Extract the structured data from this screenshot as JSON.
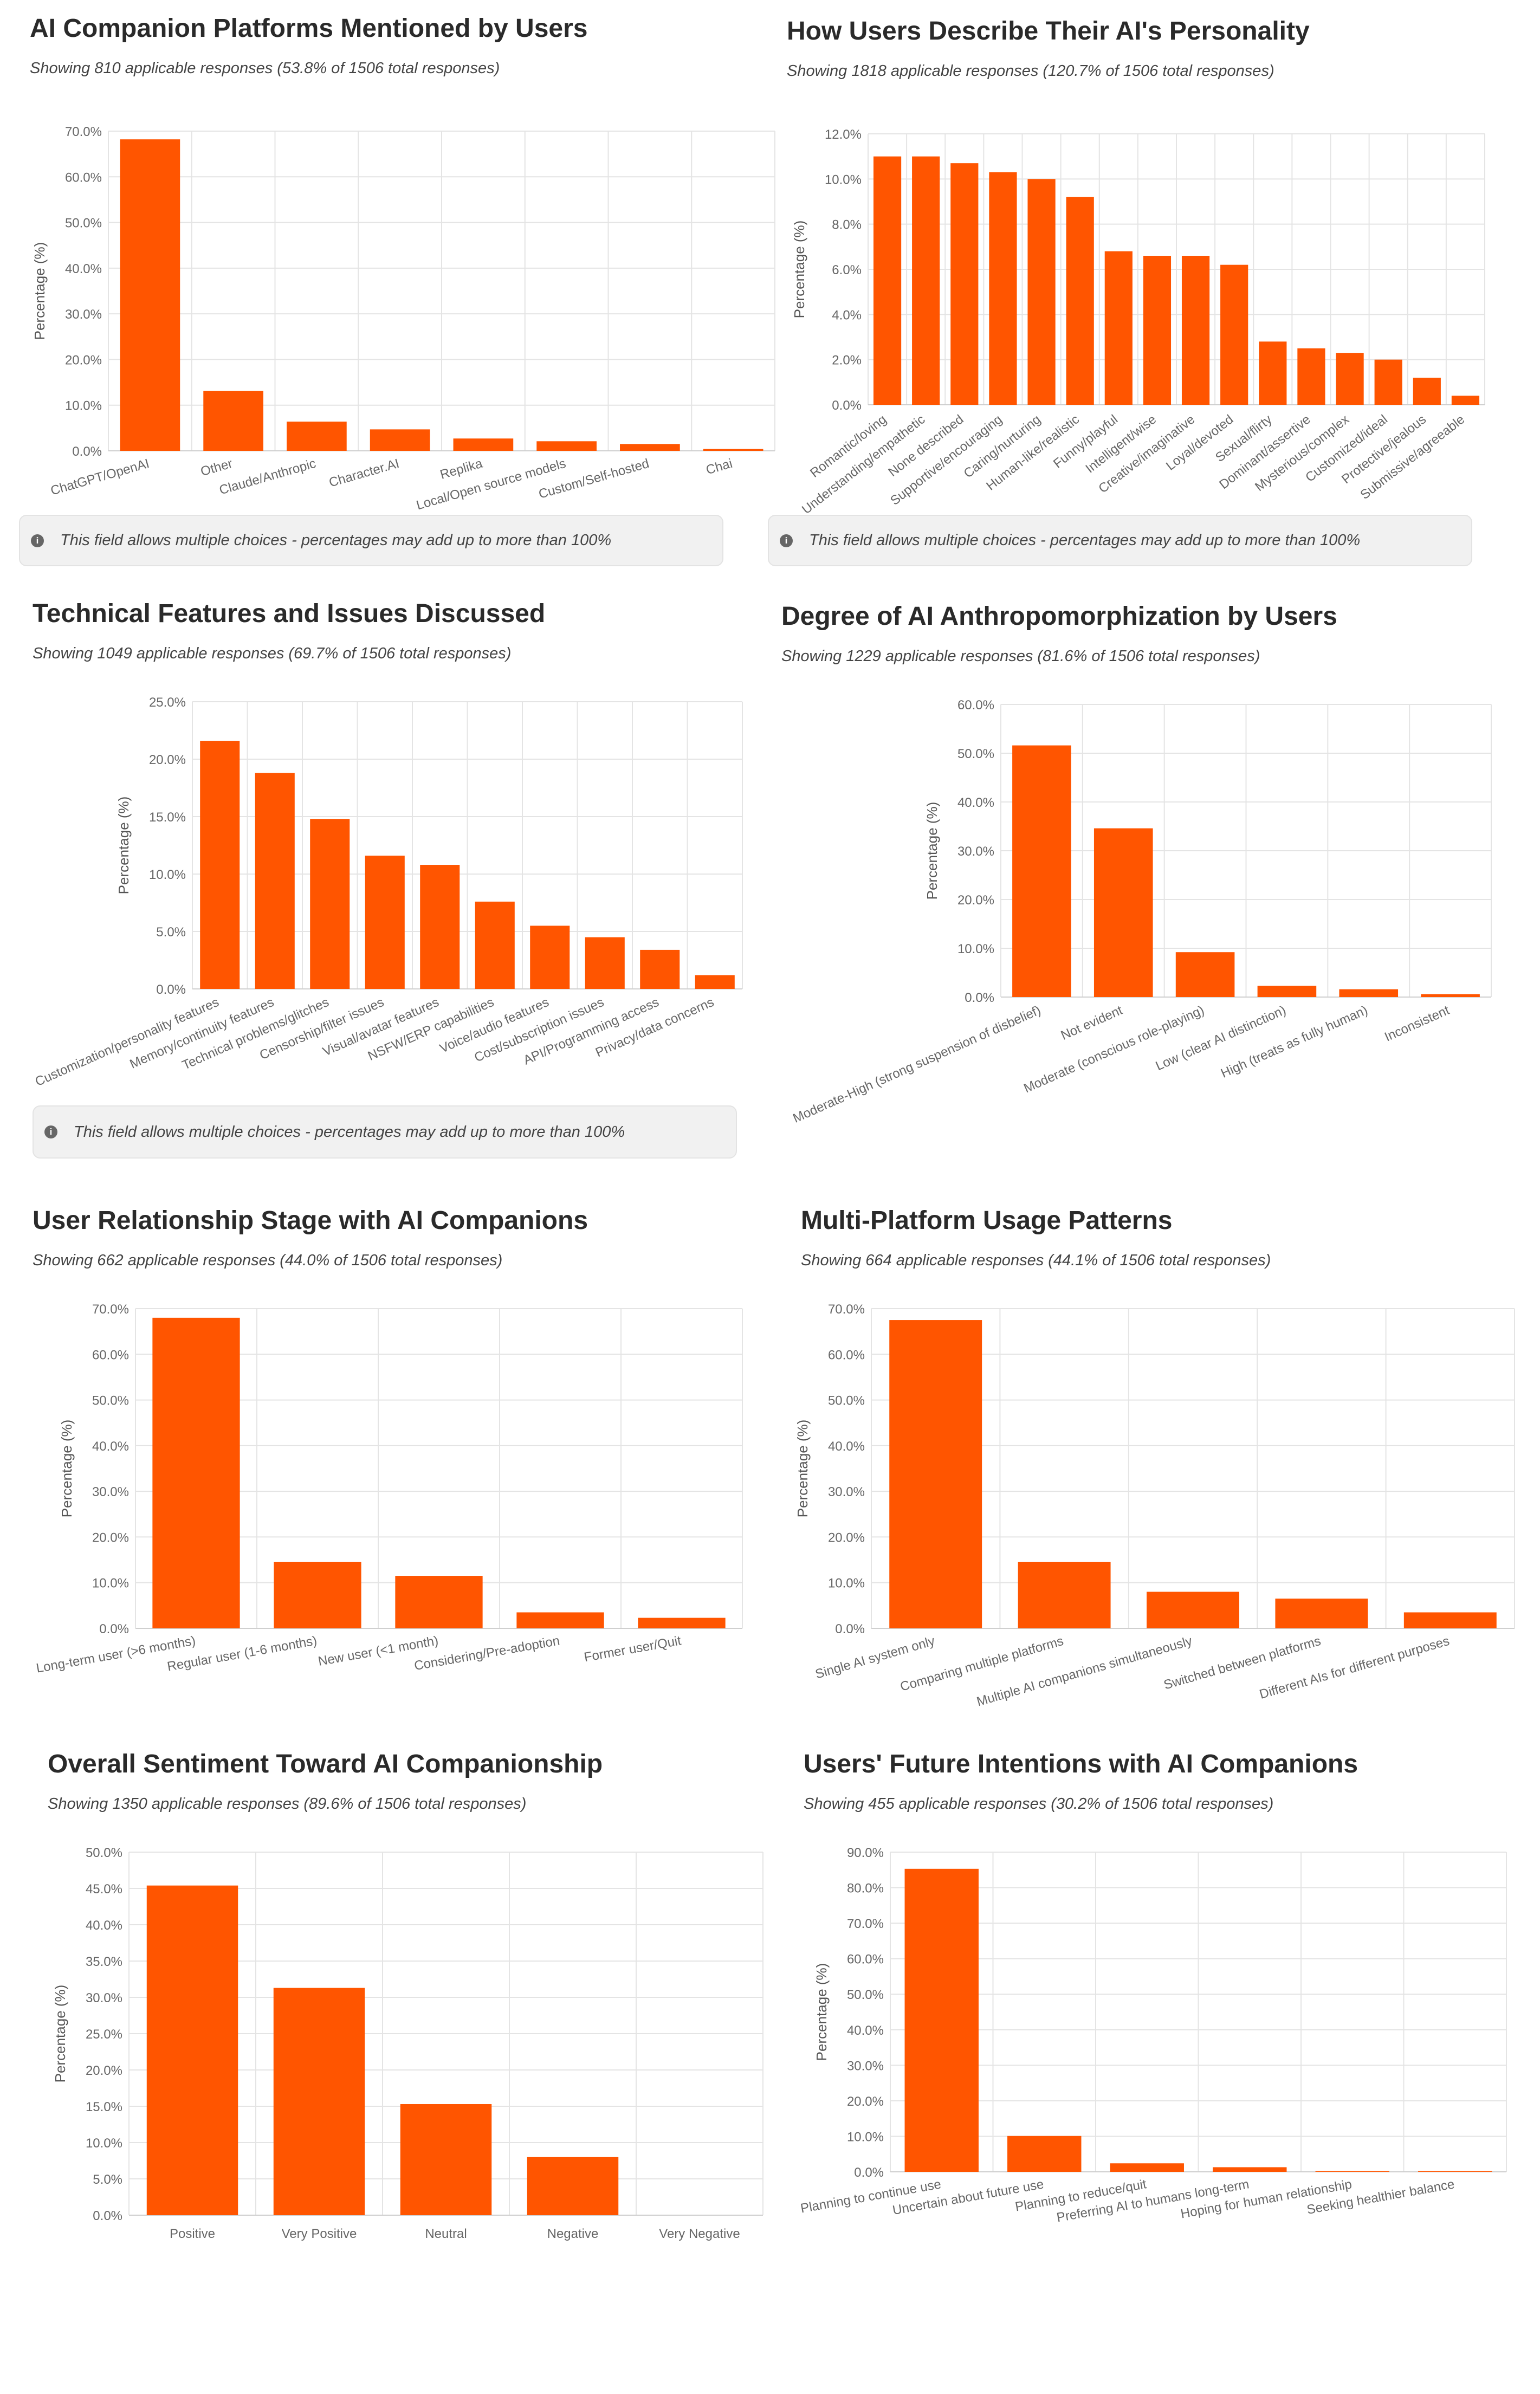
{
  "colors": {
    "bar": "#ff5500",
    "grid": "#e4e4e4",
    "axis_text": "#666666"
  },
  "note_text": "This field allows multiple choices - percentages may add up to more than 100%",
  "info_icon": "info-icon",
  "chart_data": [
    {
      "type": "bar",
      "title": "AI Companion Platforms Mentioned by Users",
      "subtitle": "Showing 810 applicable responses (53.8% of 1506 total responses)",
      "ylabel": "Percentage (%)",
      "ylim": [
        0,
        70
      ],
      "yticks": [
        "0.0%",
        "10.0%",
        "20.0%",
        "30.0%",
        "40.0%",
        "50.0%",
        "60.0%",
        "70.0%"
      ],
      "categories": [
        "ChatGPT/OpenAI",
        "Other",
        "Claude/Anthropic",
        "Character.AI",
        "Replika",
        "Local/Open source models",
        "Custom/Self-hosted",
        "Chai"
      ],
      "values": [
        68.2,
        13.1,
        6.4,
        4.7,
        2.7,
        2.1,
        1.5,
        0.4
      ],
      "multiple_choice": true
    },
    {
      "type": "bar",
      "title": "How Users Describe Their AI's Personality",
      "subtitle": "Showing 1818 applicable responses (120.7% of 1506 total responses)",
      "ylabel": "Percentage (%)",
      "ylim": [
        0,
        12
      ],
      "yticks": [
        "0.0%",
        "2.0%",
        "4.0%",
        "6.0%",
        "8.0%",
        "10.0%",
        "12.0%"
      ],
      "categories": [
        "Romantic/loving",
        "Understanding/empathetic",
        "None described",
        "Supportive/encouraging",
        "Caring/nurturing",
        "Human-like/realistic",
        "Funny/playful",
        "Intelligent/wise",
        "Creative/imaginative",
        "Loyal/devoted",
        "Sexual/flirty",
        "Dominant/assertive",
        "Mysterious/complex",
        "Customized/ideal",
        "Protective/jealous",
        "Submissive/agreeable"
      ],
      "values": [
        11.0,
        11.0,
        10.7,
        10.3,
        10.0,
        9.2,
        6.8,
        6.6,
        6.6,
        6.2,
        2.8,
        2.5,
        2.3,
        2.0,
        1.2,
        0.4
      ],
      "multiple_choice": true
    },
    {
      "type": "bar",
      "title": "Technical Features and Issues Discussed",
      "subtitle": "Showing 1049 applicable responses (69.7% of 1506 total responses)",
      "ylabel": "Percentage (%)",
      "ylim": [
        0,
        25
      ],
      "yticks": [
        "0.0%",
        "5.0%",
        "10.0%",
        "15.0%",
        "20.0%",
        "25.0%"
      ],
      "categories": [
        "Customization/personality features",
        "Memory/continuity features",
        "Technical problems/glitches",
        "Censorship/filter issues",
        "Visual/avatar features",
        "NSFW/ERP capabilities",
        "Voice/audio features",
        "Cost/subscription issues",
        "API/Programming access",
        "Privacy/data concerns"
      ],
      "values": [
        21.6,
        18.8,
        14.8,
        11.6,
        10.8,
        7.6,
        5.5,
        4.5,
        3.4,
        1.2
      ],
      "multiple_choice": true
    },
    {
      "type": "bar",
      "title": "Degree of AI Anthropomorphization by Users",
      "subtitle": "Showing 1229 applicable responses (81.6% of 1506 total responses)",
      "ylabel": "Percentage (%)",
      "ylim": [
        0,
        60
      ],
      "yticks": [
        "0.0%",
        "10.0%",
        "20.0%",
        "30.0%",
        "40.0%",
        "50.0%",
        "60.0%"
      ],
      "categories": [
        "Moderate-High (strong suspension of disbelief)",
        "Not evident",
        "Moderate (conscious role-playing)",
        "Low (clear AI distinction)",
        "High (treats as fully human)",
        "Inconsistent"
      ],
      "values": [
        51.6,
        34.6,
        9.2,
        2.3,
        1.6,
        0.6
      ],
      "multiple_choice": false
    },
    {
      "type": "bar",
      "title": "User Relationship Stage with AI Companions",
      "subtitle": "Showing 662 applicable responses (44.0% of 1506 total responses)",
      "ylabel": "Percentage (%)",
      "ylim": [
        0,
        70
      ],
      "yticks": [
        "0.0%",
        "10.0%",
        "20.0%",
        "30.0%",
        "40.0%",
        "50.0%",
        "60.0%",
        "70.0%"
      ],
      "categories": [
        "Long-term user (>6 months)",
        "Regular user (1-6 months)",
        "New user (<1 month)",
        "Considering/Pre-adoption",
        "Former user/Quit"
      ],
      "values": [
        68.0,
        14.5,
        11.5,
        3.5,
        2.3
      ],
      "multiple_choice": false
    },
    {
      "type": "bar",
      "title": "Multi-Platform Usage Patterns",
      "subtitle": "Showing 664 applicable responses (44.1% of 1506 total responses)",
      "ylabel": "Percentage (%)",
      "ylim": [
        0,
        70
      ],
      "yticks": [
        "0.0%",
        "10.0%",
        "20.0%",
        "30.0%",
        "40.0%",
        "50.0%",
        "60.0%",
        "70.0%"
      ],
      "categories": [
        "Single AI system only",
        "Comparing multiple platforms",
        "Multiple AI companions simultaneously",
        "Switched between platforms",
        "Different AIs for different purposes"
      ],
      "values": [
        67.5,
        14.5,
        8.0,
        6.5,
        3.5
      ],
      "multiple_choice": false
    },
    {
      "type": "bar",
      "title": "Overall Sentiment Toward AI Companionship",
      "subtitle": "Showing 1350 applicable responses (89.6% of 1506 total responses)",
      "ylabel": "Percentage (%)",
      "ylim": [
        0,
        50
      ],
      "yticks": [
        "0.0%",
        "5.0%",
        "10.0%",
        "15.0%",
        "20.0%",
        "25.0%",
        "30.0%",
        "35.0%",
        "40.0%",
        "45.0%",
        "50.0%"
      ],
      "categories": [
        "Positive",
        "Very Positive",
        "Neutral",
        "Negative",
        "Very Negative"
      ],
      "values": [
        45.4,
        31.3,
        15.3,
        8.0,
        0.0
      ],
      "multiple_choice": false
    },
    {
      "type": "bar",
      "title": "Users' Future Intentions with AI Companions",
      "subtitle": "Showing 455 applicable responses (30.2% of 1506 total responses)",
      "ylabel": "Percentage (%)",
      "ylim": [
        0,
        90
      ],
      "yticks": [
        "0.0%",
        "10.0%",
        "20.0%",
        "30.0%",
        "40.0%",
        "50.0%",
        "60.0%",
        "70.0%",
        "80.0%",
        "90.0%"
      ],
      "categories": [
        "Planning to continue use",
        "Uncertain about future use",
        "Planning to reduce/quit",
        "Preferring AI to humans long-term",
        "Hoping for human relationship",
        "Seeking healthier balance"
      ],
      "values": [
        85.3,
        10.1,
        2.4,
        1.3,
        0.2,
        0.2
      ],
      "multiple_choice": false
    }
  ]
}
